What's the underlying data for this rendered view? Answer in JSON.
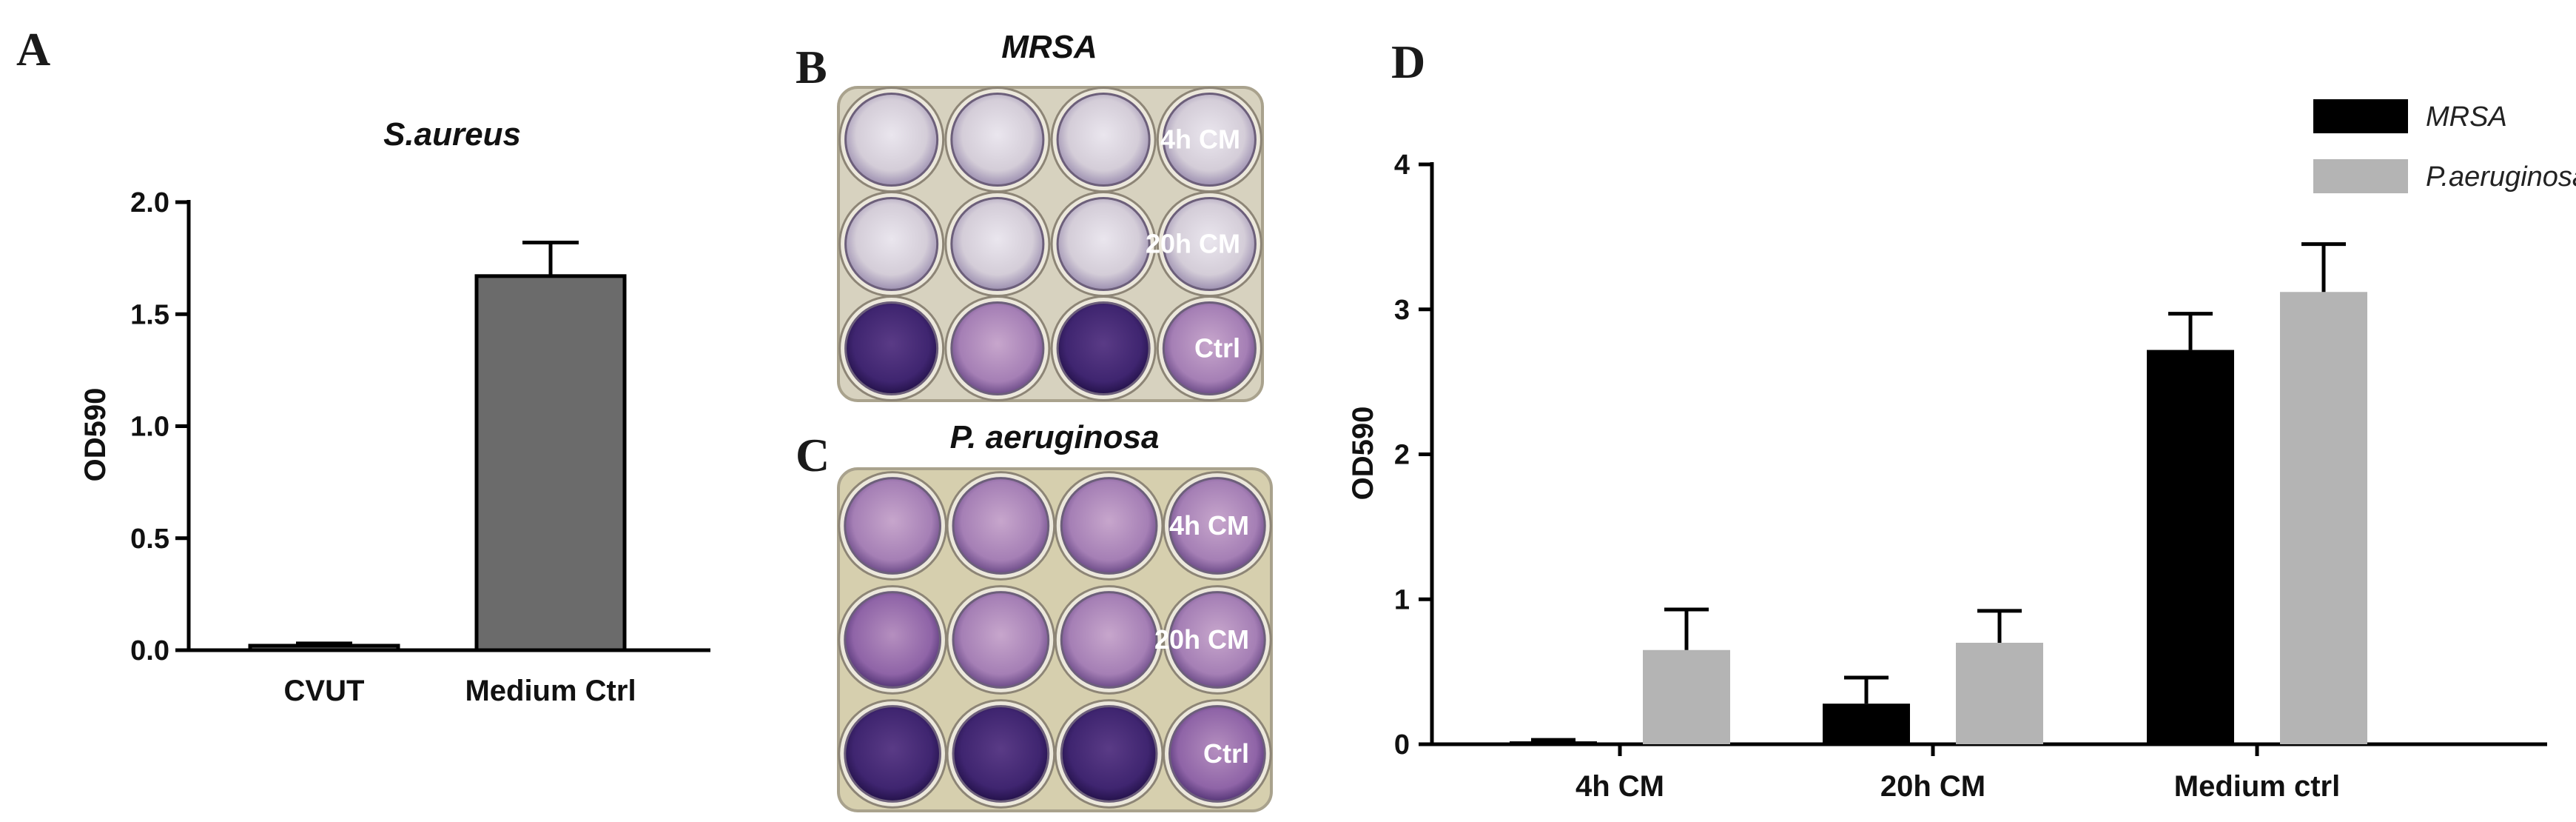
{
  "panels": {
    "A": {
      "letter": "A",
      "chart_data": {
        "type": "bar",
        "title": "S.aureus",
        "xlabel": "",
        "ylabel": "OD590",
        "categories": [
          "CVUT",
          "Medium Ctrl"
        ],
        "values": [
          0.02,
          1.67
        ],
        "errors": [
          0.01,
          0.15
        ],
        "yticks": [
          "0.0",
          "0.5",
          "1.0",
          "1.5",
          "2.0"
        ],
        "ylim": [
          0,
          2.0
        ],
        "bar_color": "#6b6b6b",
        "grid": false
      }
    },
    "B": {
      "letter": "B",
      "title": "MRSA",
      "row_labels": [
        "4h CM",
        "20h CM",
        "Ctrl"
      ]
    },
    "C": {
      "letter": "C",
      "title": "P. aeruginosa",
      "row_labels": [
        "4h CM",
        "20h CM",
        "Ctrl"
      ]
    },
    "D": {
      "letter": "D",
      "chart_data": {
        "type": "bar",
        "title": "",
        "xlabel": "",
        "ylabel": "OD590",
        "categories": [
          "4h CM",
          "20h CM",
          "Medium ctrl"
        ],
        "series": [
          {
            "name": "MRSA",
            "color": "#000000",
            "values": [
              0.02,
              0.28,
              2.72
            ],
            "errors": [
              0.01,
              0.18,
              0.25
            ]
          },
          {
            "name": "P.aeruginosa",
            "color": "#b4b4b4",
            "values": [
              0.65,
              0.7,
              3.12
            ],
            "errors": [
              0.28,
              0.22,
              0.33
            ]
          }
        ],
        "yticks": [
          "0",
          "1",
          "2",
          "3",
          "4"
        ],
        "ylim": [
          0,
          4
        ],
        "legend_position": "top-right",
        "grid": false
      }
    }
  }
}
